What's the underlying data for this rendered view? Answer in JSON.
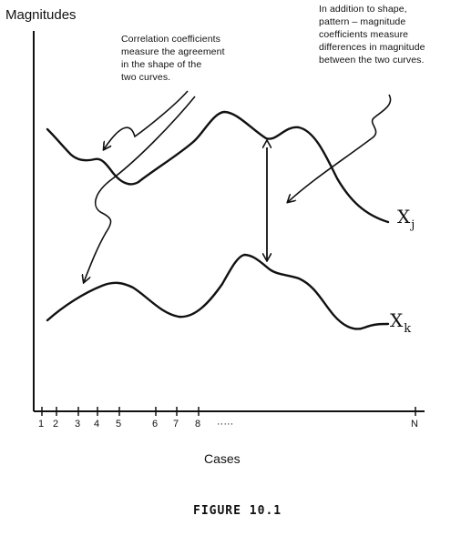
{
  "axes": {
    "y_label": "Magnitudes",
    "x_label": "Cases",
    "x_ticks": [
      "1",
      "2",
      "3",
      "4",
      "5",
      "6",
      "7",
      "8",
      "·····",
      "N"
    ]
  },
  "annotations": {
    "correlation_note": [
      "Correlation coefficients",
      "measure the agreement",
      "in the shape of the",
      "two curves."
    ],
    "pattern_magnitude_note": [
      "In addition to shape,",
      "pattern – magnitude",
      "coefficients measure",
      "differences in magnitude",
      "between the two curves."
    ]
  },
  "curves": {
    "upper": {
      "label": "X",
      "subscript": "j"
    },
    "lower": {
      "label": "X",
      "subscript": "k"
    }
  },
  "caption": "FIGURE 10.1"
}
